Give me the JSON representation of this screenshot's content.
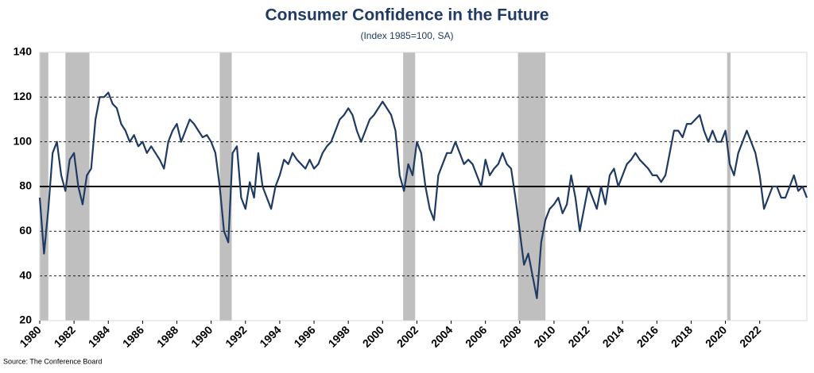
{
  "chart_data": {
    "type": "line",
    "title": "Consumer Confidence in the Future",
    "subtitle": "(Index 1985=100, SA)",
    "source": "Source: The Conference Board",
    "x": [
      1980,
      1980.25,
      1980.5,
      1980.75,
      1981,
      1981.25,
      1981.5,
      1981.75,
      1982,
      1982.25,
      1982.5,
      1982.75,
      1983,
      1983.25,
      1983.5,
      1983.75,
      1984,
      1984.25,
      1984.5,
      1984.75,
      1985,
      1985.25,
      1985.5,
      1985.75,
      1986,
      1986.25,
      1986.5,
      1986.75,
      1987,
      1987.25,
      1987.5,
      1987.75,
      1988,
      1988.25,
      1988.5,
      1988.75,
      1989,
      1989.25,
      1989.5,
      1989.75,
      1990,
      1990.25,
      1990.5,
      1990.75,
      1991,
      1991.25,
      1991.5,
      1991.75,
      1992,
      1992.25,
      1992.5,
      1992.75,
      1993,
      1993.25,
      1993.5,
      1993.75,
      1994,
      1994.25,
      1994.5,
      1994.75,
      1995,
      1995.25,
      1995.5,
      1995.75,
      1996,
      1996.25,
      1996.5,
      1996.75,
      1997,
      1997.25,
      1997.5,
      1997.75,
      1998,
      1998.25,
      1998.5,
      1998.75,
      1999,
      1999.25,
      1999.5,
      1999.75,
      2000,
      2000.25,
      2000.5,
      2000.75,
      2001,
      2001.25,
      2001.5,
      2001.75,
      2002,
      2002.25,
      2002.5,
      2002.75,
      2003,
      2003.25,
      2003.5,
      2003.75,
      2004,
      2004.25,
      2004.5,
      2004.75,
      2005,
      2005.25,
      2005.5,
      2005.75,
      2006,
      2006.25,
      2006.5,
      2006.75,
      2007,
      2007.25,
      2007.5,
      2007.75,
      2008,
      2008.25,
      2008.5,
      2008.75,
      2009,
      2009.25,
      2009.5,
      2009.75,
      2010,
      2010.25,
      2010.5,
      2010.75,
      2011,
      2011.25,
      2011.5,
      2011.75,
      2012,
      2012.25,
      2012.5,
      2012.75,
      2013,
      2013.25,
      2013.5,
      2013.75,
      2014,
      2014.25,
      2014.5,
      2014.75,
      2015,
      2015.25,
      2015.5,
      2015.75,
      2016,
      2016.25,
      2016.5,
      2016.75,
      2017,
      2017.25,
      2017.5,
      2017.75,
      2018,
      2018.25,
      2018.5,
      2018.75,
      2019,
      2019.25,
      2019.5,
      2019.75,
      2020,
      2020.25,
      2020.5,
      2020.75,
      2021,
      2021.25,
      2021.5,
      2021.75,
      2022,
      2022.25,
      2022.5,
      2022.75,
      2023,
      2023.25,
      2023.5,
      2023.75,
      2024,
      2024.25,
      2024.5,
      2024.75
    ],
    "series": [
      {
        "name": "Consumer Confidence in the Future",
        "color": "#1f3b63",
        "values": [
          75,
          50,
          70,
          95,
          100,
          85,
          78,
          92,
          95,
          80,
          72,
          85,
          88,
          110,
          120,
          120,
          122,
          117,
          115,
          108,
          105,
          100,
          103,
          98,
          100,
          95,
          98,
          95,
          92,
          88,
          100,
          105,
          108,
          100,
          105,
          110,
          108,
          105,
          102,
          103,
          100,
          95,
          80,
          60,
          55,
          95,
          98,
          75,
          70,
          82,
          75,
          95,
          80,
          75,
          70,
          80,
          85,
          92,
          90,
          95,
          92,
          90,
          88,
          92,
          88,
          90,
          95,
          98,
          100,
          105,
          110,
          112,
          115,
          112,
          105,
          100,
          105,
          110,
          112,
          115,
          118,
          115,
          112,
          105,
          85,
          78,
          90,
          85,
          100,
          95,
          80,
          70,
          65,
          85,
          90,
          95,
          95,
          100,
          95,
          90,
          92,
          90,
          85,
          80,
          92,
          85,
          88,
          90,
          95,
          90,
          88,
          75,
          60,
          45,
          50,
          40,
          30,
          55,
          65,
          70,
          72,
          75,
          68,
          72,
          85,
          75,
          60,
          70,
          80,
          75,
          70,
          80,
          72,
          85,
          88,
          80,
          85,
          90,
          92,
          95,
          92,
          90,
          88,
          85,
          85,
          82,
          85,
          95,
          105,
          105,
          102,
          108,
          108,
          110,
          112,
          105,
          100,
          105,
          100,
          100,
          105,
          90,
          85,
          95,
          100,
          105,
          100,
          95,
          85,
          70,
          75,
          80,
          80,
          75,
          75,
          80,
          85,
          78,
          80,
          75
        ]
      }
    ],
    "recessions": [
      [
        1980,
        1980.5
      ],
      [
        1981.5,
        1982.9
      ],
      [
        1990.5,
        1991.2
      ],
      [
        2001.2,
        2001.9
      ],
      [
        2007.9,
        2009.5
      ],
      [
        2020.1,
        2020.3
      ]
    ],
    "reference_line": 80,
    "xlim": [
      1980,
      2024.75
    ],
    "xticks": [
      1980,
      1982,
      1984,
      1986,
      1988,
      1990,
      1992,
      1994,
      1996,
      1998,
      2000,
      2002,
      2004,
      2006,
      2008,
      2010,
      2012,
      2014,
      2016,
      2018,
      2020,
      2022
    ],
    "ylim": [
      20,
      140
    ],
    "yticks": [
      20,
      40,
      60,
      80,
      100,
      120,
      140
    ],
    "grid": true
  }
}
